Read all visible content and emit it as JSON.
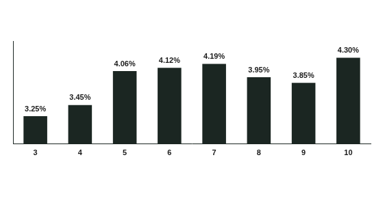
{
  "chart_data": {
    "type": "bar",
    "categories": [
      "3",
      "4",
      "5",
      "6",
      "7",
      "8",
      "9",
      "10"
    ],
    "values": [
      3.25,
      3.45,
      4.06,
      4.12,
      4.19,
      3.95,
      3.85,
      4.3
    ],
    "value_labels": [
      "3.25%",
      "3.45%",
      "4.06%",
      "4.12%",
      "4.19%",
      "3.95%",
      "3.85%",
      "4.30%"
    ],
    "color": "#1b2622",
    "ylim": [
      2.75,
      4.6
    ],
    "grid": false,
    "data_labels": true,
    "tick_labels": "x"
  }
}
